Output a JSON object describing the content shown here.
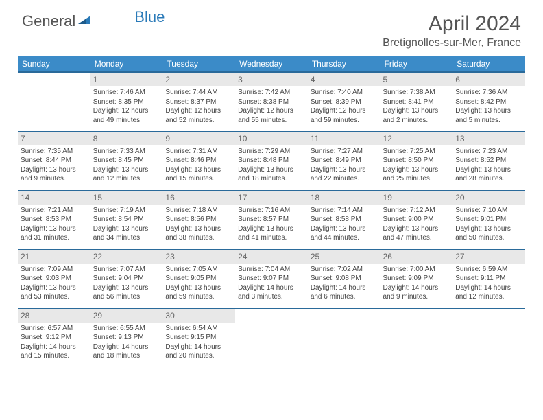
{
  "logo": {
    "text1": "General",
    "text2": "Blue"
  },
  "title": "April 2024",
  "location": "Bretignolles-sur-Mer, France",
  "colors": {
    "header_bg": "#3b8bc8",
    "header_border": "#2a6a9a",
    "daynum_bg": "#e8e8e8",
    "text": "#444",
    "logo_gray": "#555",
    "logo_blue": "#2a7ab8"
  },
  "weekdays": [
    "Sunday",
    "Monday",
    "Tuesday",
    "Wednesday",
    "Thursday",
    "Friday",
    "Saturday"
  ],
  "start_weekday": 1,
  "days": [
    {
      "n": 1,
      "sunrise": "7:46 AM",
      "sunset": "8:35 PM",
      "daylight": "12 hours and 49 minutes."
    },
    {
      "n": 2,
      "sunrise": "7:44 AM",
      "sunset": "8:37 PM",
      "daylight": "12 hours and 52 minutes."
    },
    {
      "n": 3,
      "sunrise": "7:42 AM",
      "sunset": "8:38 PM",
      "daylight": "12 hours and 55 minutes."
    },
    {
      "n": 4,
      "sunrise": "7:40 AM",
      "sunset": "8:39 PM",
      "daylight": "12 hours and 59 minutes."
    },
    {
      "n": 5,
      "sunrise": "7:38 AM",
      "sunset": "8:41 PM",
      "daylight": "13 hours and 2 minutes."
    },
    {
      "n": 6,
      "sunrise": "7:36 AM",
      "sunset": "8:42 PM",
      "daylight": "13 hours and 5 minutes."
    },
    {
      "n": 7,
      "sunrise": "7:35 AM",
      "sunset": "8:44 PM",
      "daylight": "13 hours and 9 minutes."
    },
    {
      "n": 8,
      "sunrise": "7:33 AM",
      "sunset": "8:45 PM",
      "daylight": "13 hours and 12 minutes."
    },
    {
      "n": 9,
      "sunrise": "7:31 AM",
      "sunset": "8:46 PM",
      "daylight": "13 hours and 15 minutes."
    },
    {
      "n": 10,
      "sunrise": "7:29 AM",
      "sunset": "8:48 PM",
      "daylight": "13 hours and 18 minutes."
    },
    {
      "n": 11,
      "sunrise": "7:27 AM",
      "sunset": "8:49 PM",
      "daylight": "13 hours and 22 minutes."
    },
    {
      "n": 12,
      "sunrise": "7:25 AM",
      "sunset": "8:50 PM",
      "daylight": "13 hours and 25 minutes."
    },
    {
      "n": 13,
      "sunrise": "7:23 AM",
      "sunset": "8:52 PM",
      "daylight": "13 hours and 28 minutes."
    },
    {
      "n": 14,
      "sunrise": "7:21 AM",
      "sunset": "8:53 PM",
      "daylight": "13 hours and 31 minutes."
    },
    {
      "n": 15,
      "sunrise": "7:19 AM",
      "sunset": "8:54 PM",
      "daylight": "13 hours and 34 minutes."
    },
    {
      "n": 16,
      "sunrise": "7:18 AM",
      "sunset": "8:56 PM",
      "daylight": "13 hours and 38 minutes."
    },
    {
      "n": 17,
      "sunrise": "7:16 AM",
      "sunset": "8:57 PM",
      "daylight": "13 hours and 41 minutes."
    },
    {
      "n": 18,
      "sunrise": "7:14 AM",
      "sunset": "8:58 PM",
      "daylight": "13 hours and 44 minutes."
    },
    {
      "n": 19,
      "sunrise": "7:12 AM",
      "sunset": "9:00 PM",
      "daylight": "13 hours and 47 minutes."
    },
    {
      "n": 20,
      "sunrise": "7:10 AM",
      "sunset": "9:01 PM",
      "daylight": "13 hours and 50 minutes."
    },
    {
      "n": 21,
      "sunrise": "7:09 AM",
      "sunset": "9:03 PM",
      "daylight": "13 hours and 53 minutes."
    },
    {
      "n": 22,
      "sunrise": "7:07 AM",
      "sunset": "9:04 PM",
      "daylight": "13 hours and 56 minutes."
    },
    {
      "n": 23,
      "sunrise": "7:05 AM",
      "sunset": "9:05 PM",
      "daylight": "13 hours and 59 minutes."
    },
    {
      "n": 24,
      "sunrise": "7:04 AM",
      "sunset": "9:07 PM",
      "daylight": "14 hours and 3 minutes."
    },
    {
      "n": 25,
      "sunrise": "7:02 AM",
      "sunset": "9:08 PM",
      "daylight": "14 hours and 6 minutes."
    },
    {
      "n": 26,
      "sunrise": "7:00 AM",
      "sunset": "9:09 PM",
      "daylight": "14 hours and 9 minutes."
    },
    {
      "n": 27,
      "sunrise": "6:59 AM",
      "sunset": "9:11 PM",
      "daylight": "14 hours and 12 minutes."
    },
    {
      "n": 28,
      "sunrise": "6:57 AM",
      "sunset": "9:12 PM",
      "daylight": "14 hours and 15 minutes."
    },
    {
      "n": 29,
      "sunrise": "6:55 AM",
      "sunset": "9:13 PM",
      "daylight": "14 hours and 18 minutes."
    },
    {
      "n": 30,
      "sunrise": "6:54 AM",
      "sunset": "9:15 PM",
      "daylight": "14 hours and 20 minutes."
    }
  ],
  "labels": {
    "sunrise": "Sunrise:",
    "sunset": "Sunset:",
    "daylight": "Daylight:"
  }
}
